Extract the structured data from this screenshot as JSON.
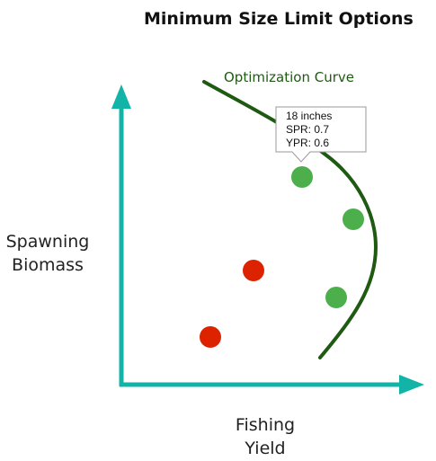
{
  "title": "Minimum Size Limit Options",
  "y_axis_label": [
    "Spawning",
    "Biomass"
  ],
  "x_axis_label": [
    "Fishing",
    "Yield"
  ],
  "curve": {
    "label": "Optimization Curve",
    "color": "#1f5a12"
  },
  "callout": {
    "lines": [
      "18 inches",
      "SPR: 0.7",
      "YPR: 0.6"
    ]
  },
  "colors": {
    "axis": "#13b4a8",
    "point_green": "#4caf4c",
    "point_red": "#dd2200",
    "callout_border": "#9a9a9a"
  },
  "points": [
    {
      "color": "green",
      "highlighted": true
    },
    {
      "color": "green",
      "highlighted": false
    },
    {
      "color": "green",
      "highlighted": false
    },
    {
      "color": "red",
      "highlighted": false
    },
    {
      "color": "red",
      "highlighted": false
    }
  ]
}
